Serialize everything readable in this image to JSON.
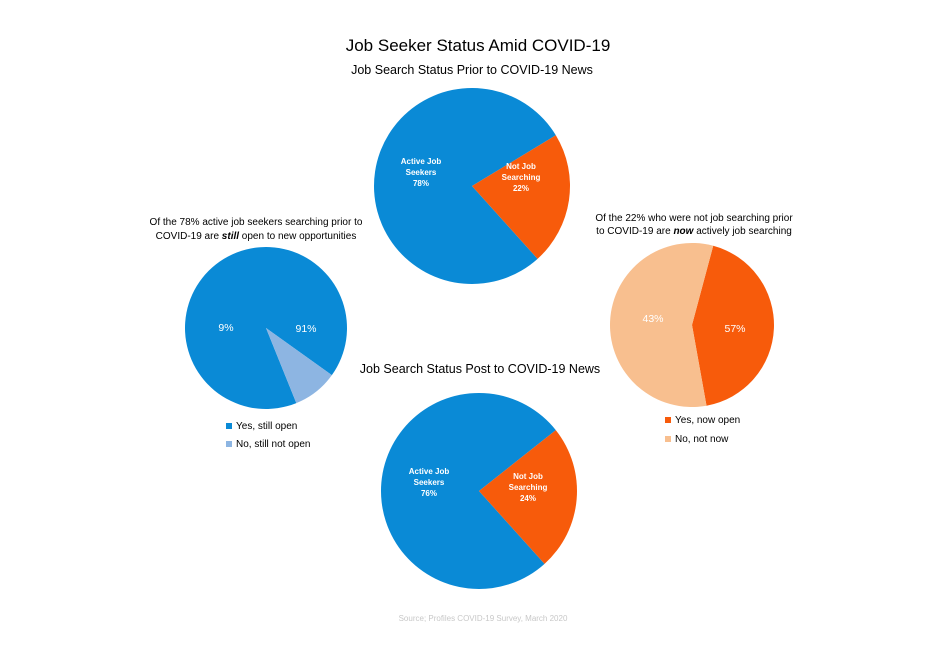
{
  "title": "Job Seeker Status Amid COVID-19",
  "source": "Source; Profiles COVID-19 Survey, March 2020",
  "colors": {
    "blue": "#0a8ad6",
    "orange": "#f75b0b",
    "light_blue": "#8db5e2",
    "peach": "#f8bf8f"
  },
  "chart_data": [
    {
      "id": "prior",
      "type": "pie",
      "title": "Job Search Status Prior to COVID-19 News",
      "slices": [
        {
          "label_lines": [
            "Active Job",
            "Seekers",
            "78%"
          ],
          "value": 78,
          "color": "#0a8ad6"
        },
        {
          "label_lines": [
            "Not Job",
            "Searching",
            "22%"
          ],
          "value": 22,
          "color": "#f75b0b"
        }
      ],
      "legend": []
    },
    {
      "id": "still_open",
      "type": "pie",
      "title_parts": [
        {
          "text": "Of the 78% active job seekers searching prior to",
          "style": "normal"
        },
        {
          "text": "COVID-19 are ",
          "style": "normal"
        },
        {
          "text": "still",
          "style": "bold-italic"
        },
        {
          "text": " open to new opportunities",
          "style": "normal"
        }
      ],
      "slices": [
        {
          "label": "91%",
          "value": 91,
          "color": "#0a8ad6",
          "legend": "Yes, still open"
        },
        {
          "label": "9%",
          "value": 9,
          "color": "#8db5e2",
          "legend": "No, still not open"
        }
      ],
      "legend_position": "bottom"
    },
    {
      "id": "now_searching",
      "type": "pie",
      "title_parts": [
        {
          "text": "Of the 22% who were not job searching prior",
          "style": "normal"
        },
        {
          "text": "to COVID-19 are ",
          "style": "normal"
        },
        {
          "text": "now",
          "style": "bold-italic"
        },
        {
          "text": " actively job searching",
          "style": "normal"
        }
      ],
      "slices": [
        {
          "label": "43%",
          "value": 43,
          "color": "#f75b0b",
          "legend": "Yes, now open"
        },
        {
          "label": "57%",
          "value": 57,
          "color": "#f8bf8f",
          "legend": "No, not now"
        }
      ],
      "legend_position": "bottom"
    },
    {
      "id": "post",
      "type": "pie",
      "title": "Job Search Status Post to COVID-19 News",
      "slices": [
        {
          "label_lines": [
            "Active Job",
            "Seekers",
            "76%"
          ],
          "value": 76,
          "color": "#0a8ad6"
        },
        {
          "label_lines": [
            "Not Job",
            "Searching",
            "24%"
          ],
          "value": 24,
          "color": "#f75b0b"
        }
      ],
      "legend": []
    }
  ]
}
